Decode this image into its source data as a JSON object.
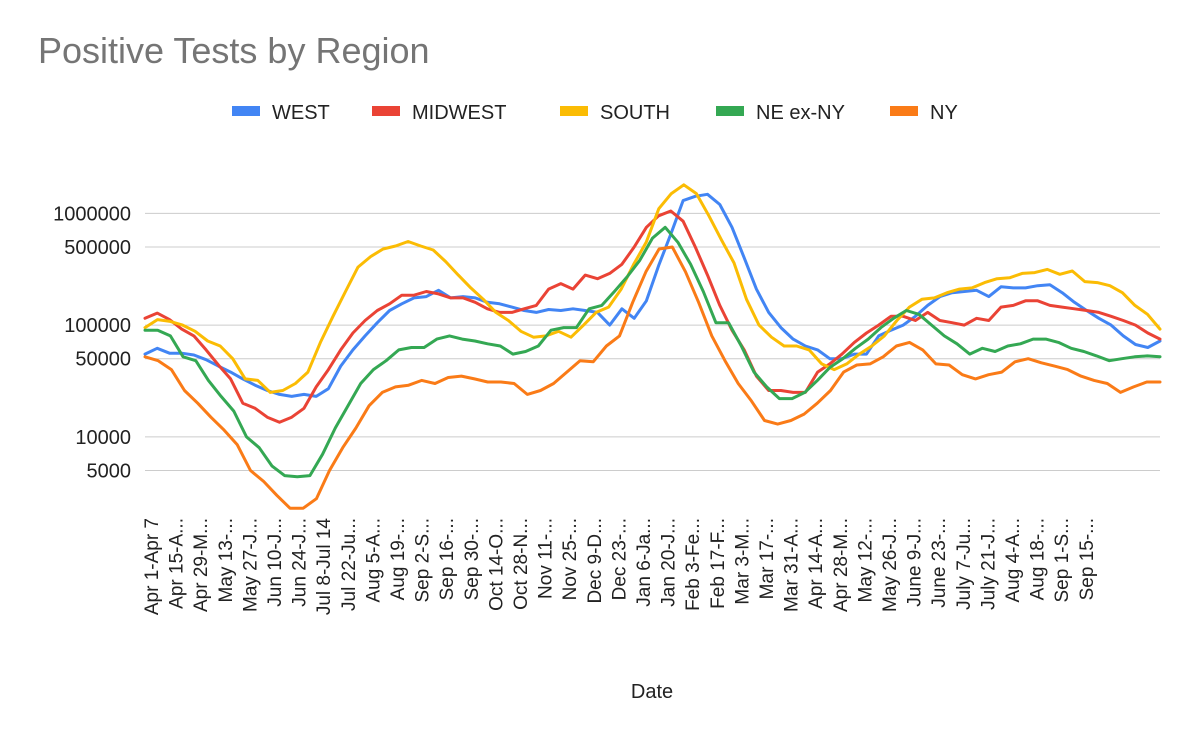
{
  "chart_data": {
    "type": "line",
    "title": "Positive Tests by Region",
    "xlabel": "Date",
    "ylabel": "",
    "y_scale": "log",
    "ylim": [
      2000,
      3000000
    ],
    "y_ticks": [
      5000,
      10000,
      50000,
      100000,
      500000,
      1000000
    ],
    "grid": true,
    "legend_position": "top",
    "x_tick_labels": [
      "Apr 1-Apr 7",
      "Apr 15-A...",
      "Apr 29-M...",
      "May 13-...",
      "May 27-J...",
      "Jun 10-J...",
      "Jun 24-J...",
      "Jul 8-Jul 14",
      "Jul 22-Ju...",
      "Aug 5-A...",
      "Aug 19-...",
      "Sep 2-S...",
      "Sep 16-...",
      "Sep 30-...",
      "Oct 14-O...",
      "Oct 28-N...",
      "Nov 11-...",
      "Nov 25-...",
      "Dec 9-D...",
      "Dec 23-...",
      "Jan 6-Ja...",
      "Jan 20-J...",
      "Feb 3-Fe...",
      "Feb 17-F...",
      "Mar 3-M...",
      "Mar 17-...",
      "Mar 31-A...",
      "Apr 14-A...",
      "Apr 28-M...",
      "May 12-...",
      "May 26-J...",
      "June 9-J...",
      "June 23-...",
      "July 7-Ju...",
      "July 21-J...",
      "Aug 4-A...",
      "Aug 18-...",
      "Sep 1-S...",
      "Sep 15-..."
    ],
    "series": [
      {
        "name": "WEST",
        "color": "#4285F4",
        "values": [
          55000,
          62000,
          56000,
          56000,
          54000,
          49000,
          43000,
          38000,
          33000,
          29000,
          26000,
          24000,
          23000,
          24000,
          23000,
          27000,
          43000,
          60000,
          80000,
          105000,
          135000,
          155000,
          175000,
          180000,
          205000,
          175000,
          180000,
          175000,
          160000,
          155000,
          145000,
          135000,
          130000,
          138000,
          135000,
          140000,
          135000,
          130000,
          100000,
          140000,
          115000,
          165000,
          340000,
          650000,
          1300000,
          1420000,
          1480000,
          1200000,
          750000,
          400000,
          210000,
          130000,
          95000,
          75000,
          65000,
          60000,
          50000,
          50000,
          55000,
          55000,
          80000,
          90000,
          100000,
          120000,
          150000,
          180000,
          195000,
          200000,
          205000,
          180000,
          220000,
          215000,
          215000,
          225000,
          230000,
          195000,
          160000,
          135000,
          115000,
          100000,
          80000,
          67000,
          63000,
          72000
        ]
      },
      {
        "name": "MIDWEST",
        "color": "#EA4335",
        "values": [
          115000,
          128000,
          112000,
          92000,
          80000,
          60000,
          44000,
          33000,
          20000,
          18000,
          15000,
          13500,
          15000,
          18000,
          28000,
          40000,
          60000,
          85000,
          110000,
          135000,
          155000,
          185000,
          185000,
          200000,
          190000,
          175000,
          175000,
          160000,
          140000,
          130000,
          130000,
          140000,
          150000,
          210000,
          235000,
          210000,
          280000,
          260000,
          290000,
          350000,
          500000,
          750000,
          950000,
          1050000,
          850000,
          500000,
          280000,
          150000,
          90000,
          60000,
          35000,
          26000,
          26000,
          25000,
          25000,
          38000,
          45000,
          55000,
          70000,
          85000,
          100000,
          120000,
          120000,
          110000,
          130000,
          110000,
          105000,
          100000,
          115000,
          110000,
          145000,
          150000,
          165000,
          165000,
          150000,
          145000,
          140000,
          135000,
          130000,
          120000,
          110000,
          100000,
          85000,
          75000
        ]
      },
      {
        "name": "SOUTH",
        "color": "#FBBC04",
        "values": [
          95000,
          112000,
          108000,
          100000,
          88000,
          72000,
          65000,
          50000,
          33000,
          32000,
          25000,
          26000,
          30000,
          38000,
          70000,
          120000,
          200000,
          330000,
          410000,
          480000,
          510000,
          560000,
          510000,
          470000,
          370000,
          280000,
          215000,
          170000,
          130000,
          110000,
          88000,
          78000,
          80000,
          88000,
          78000,
          100000,
          130000,
          145000,
          210000,
          350000,
          550000,
          1100000,
          1500000,
          1800000,
          1500000,
          950000,
          580000,
          360000,
          170000,
          100000,
          78000,
          65000,
          65000,
          60000,
          45000,
          40000,
          45000,
          55000,
          65000,
          80000,
          110000,
          145000,
          170000,
          175000,
          195000,
          210000,
          215000,
          240000,
          260000,
          265000,
          290000,
          295000,
          315000,
          285000,
          305000,
          245000,
          240000,
          225000,
          195000,
          150000,
          125000,
          92000
        ]
      },
      {
        "name": "NE ex-NY",
        "color": "#34A853",
        "values": [
          90000,
          90000,
          80000,
          52000,
          48000,
          32000,
          23000,
          17000,
          10000,
          8000,
          5500,
          4500,
          4400,
          4500,
          7000,
          12000,
          19000,
          30000,
          40000,
          48000,
          60000,
          63000,
          63000,
          75000,
          80000,
          75000,
          72000,
          68000,
          65000,
          55000,
          58000,
          65000,
          90000,
          95000,
          95000,
          140000,
          150000,
          200000,
          270000,
          380000,
          600000,
          750000,
          550000,
          350000,
          200000,
          105000,
          105000,
          65000,
          38000,
          28000,
          22000,
          22000,
          25000,
          32000,
          42000,
          50000,
          62000,
          75000,
          95000,
          115000,
          135000,
          125000,
          100000,
          80000,
          68000,
          55000,
          62000,
          58000,
          65000,
          68000,
          75000,
          75000,
          70000,
          62000,
          58000,
          53000,
          48000,
          50000,
          52000,
          53000,
          52000
        ]
      },
      {
        "name": "NY",
        "color": "#FA7B17",
        "values": [
          52000,
          48000,
          40000,
          26000,
          20000,
          15000,
          11500,
          8500,
          5000,
          4000,
          3000,
          2300,
          2300,
          2800,
          5000,
          8000,
          12000,
          19000,
          25000,
          28000,
          29000,
          32000,
          30000,
          34000,
          35000,
          33000,
          31000,
          31000,
          30000,
          24000,
          26000,
          30000,
          38000,
          48000,
          47000,
          65000,
          80000,
          160000,
          300000,
          480000,
          500000,
          300000,
          160000,
          80000,
          48000,
          30000,
          21000,
          14000,
          13000,
          14000,
          16000,
          20000,
          26000,
          38000,
          44000,
          45000,
          52000,
          65000,
          70000,
          60000,
          45000,
          44000,
          36000,
          33000,
          36000,
          38000,
          47000,
          50000,
          46000,
          43000,
          40000,
          35000,
          32000,
          30000,
          25000,
          28000,
          31000,
          31000
        ]
      }
    ]
  }
}
